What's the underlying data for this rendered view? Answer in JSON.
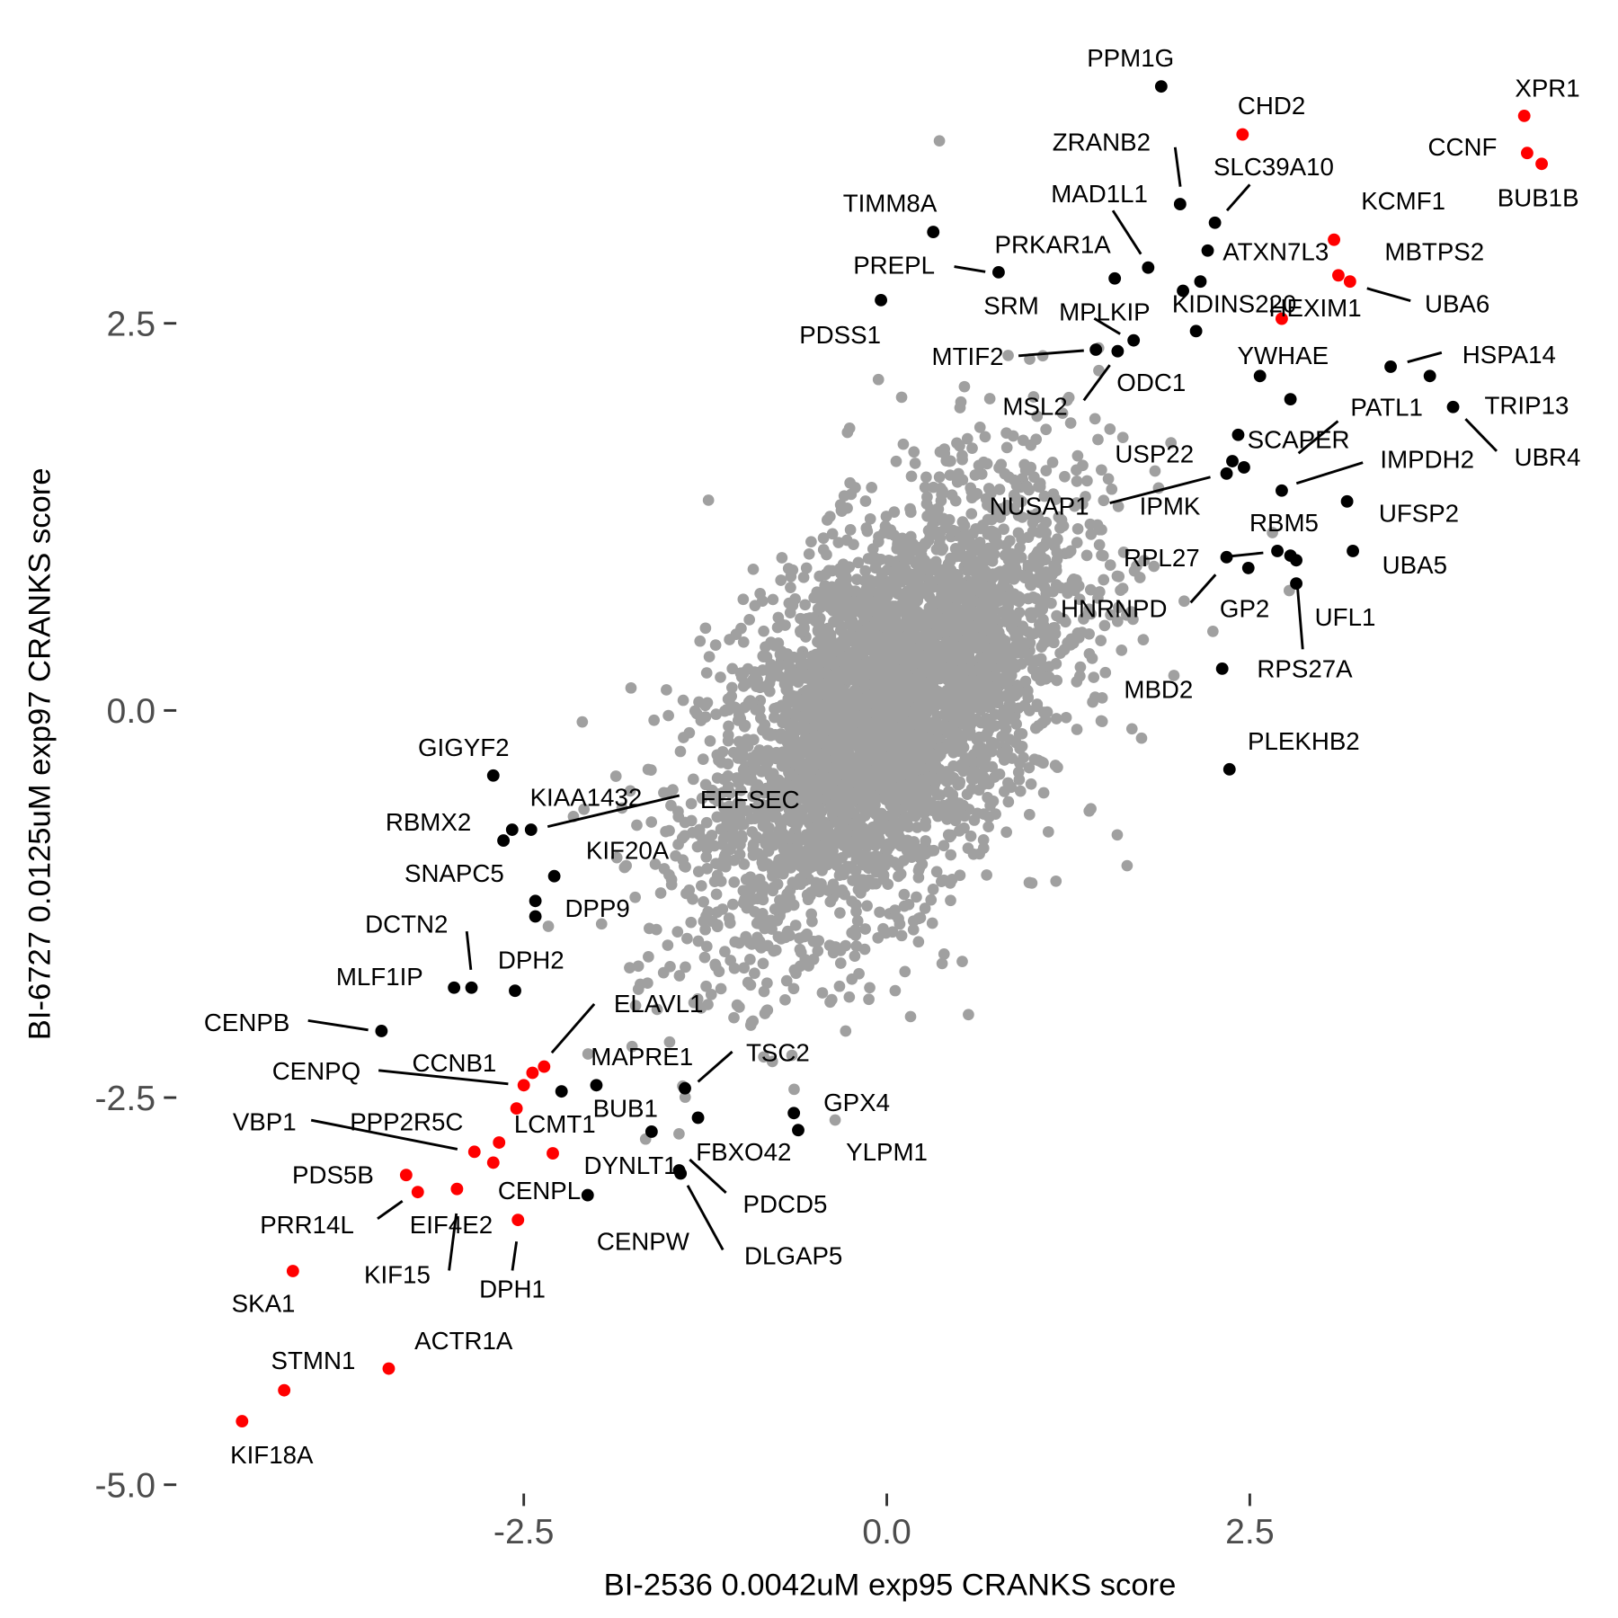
{
  "chart_data": {
    "type": "scatter",
    "title": "",
    "xlabel": "BI-2536 0.0042uM exp95 CRANKS score",
    "ylabel": "BI-6727 0.0125uM exp97 CRANKS score",
    "xlim": [
      -6.1,
      4.8
    ],
    "ylim": [
      -5.0,
      4.6
    ],
    "xticks": [
      -2.5,
      0.0,
      2.5
    ],
    "xtick_labels": [
      "-2.5",
      "0.0",
      "2.5"
    ],
    "yticks": [
      -5.0,
      -2.5,
      0.0,
      2.5
    ],
    "ytick_labels": [
      "-5.0",
      "-2.5",
      "0.0",
      "2.5"
    ],
    "grid": false,
    "legend": "none",
    "colors": {
      "background": "#a0a0a0",
      "hit": "#000000",
      "highlight": "#ff0000"
    },
    "background_points": {
      "description_count": 4000,
      "color": "#a0a0a0"
    },
    "labeled_points": [
      {
        "label": "PPM1G",
        "x": 1.89,
        "y": 4.03,
        "color": "#000000"
      },
      {
        "label": "CHD2",
        "x": 2.45,
        "y": 3.72,
        "color": "#ff0000"
      },
      {
        "label": "XPR1",
        "x": 4.39,
        "y": 3.84,
        "color": "#ff0000"
      },
      {
        "label": "CCNF",
        "x": 4.41,
        "y": 3.6,
        "color": "#ff0000"
      },
      {
        "label": "BUB1B",
        "x": 4.51,
        "y": 3.53,
        "color": "#ff0000"
      },
      {
        "label": "ZRANB2",
        "x": 2.02,
        "y": 3.27,
        "color": "#000000"
      },
      {
        "label": "SLC39A10",
        "x": 2.26,
        "y": 3.15,
        "color": "#000000"
      },
      {
        "label": "TIMM8A",
        "x": 0.32,
        "y": 3.09,
        "color": "#000000"
      },
      {
        "label": "MAD1L1",
        "x": 1.8,
        "y": 2.86,
        "color": "#000000"
      },
      {
        "label": "KCMF1",
        "x": 3.08,
        "y": 3.04,
        "color": "#ff0000"
      },
      {
        "label": "PRKAR1A",
        "x": 1.57,
        "y": 2.79,
        "color": "#000000"
      },
      {
        "label": "ATXN7L3",
        "x": 2.21,
        "y": 2.97,
        "color": "#000000"
      },
      {
        "label": "MBTPS2",
        "x": 3.11,
        "y": 2.81,
        "color": "#ff0000"
      },
      {
        "label": "UBA6",
        "x": 3.19,
        "y": 2.77,
        "color": "#ff0000"
      },
      {
        "label": "PREPL",
        "x": 0.77,
        "y": 2.83,
        "color": "#000000"
      },
      {
        "label": "PDSS1",
        "x": -0.04,
        "y": 2.65,
        "color": "#000000"
      },
      {
        "label": "SRM",
        "x": 2.04,
        "y": 2.71,
        "color": "#000000"
      },
      {
        "label": "KIDINS220",
        "x": 2.16,
        "y": 2.77,
        "color": "#000000"
      },
      {
        "label": "HEXIM1",
        "x": 2.72,
        "y": 2.53,
        "color": "#ff0000"
      },
      {
        "label": "MPLKIP",
        "x": 1.7,
        "y": 2.39,
        "color": "#000000"
      },
      {
        "label": "MTIF2",
        "x": 1.44,
        "y": 2.33,
        "color": "#000000"
      },
      {
        "label": "ODC1",
        "x": 2.13,
        "y": 2.45,
        "color": "#000000"
      },
      {
        "label": "MSL2",
        "x": 1.59,
        "y": 2.32,
        "color": "#000000"
      },
      {
        "label": "YWHAE",
        "x": 2.57,
        "y": 2.16,
        "color": "#000000"
      },
      {
        "label": "HSPA14",
        "x": 3.47,
        "y": 2.22,
        "color": "#000000"
      },
      {
        "label": "TRIP13",
        "x": 3.74,
        "y": 2.16,
        "color": "#000000"
      },
      {
        "label": "UBR4",
        "x": 3.9,
        "y": 1.96,
        "color": "#000000"
      },
      {
        "label": "PATL1",
        "x": 2.78,
        "y": 2.01,
        "color": "#000000"
      },
      {
        "label": "SCAPER",
        "x": 2.42,
        "y": 1.78,
        "color": "#000000"
      },
      {
        "label": "IMPDH2",
        "x": 2.72,
        "y": 1.42,
        "color": "#000000"
      },
      {
        "label": "USP22",
        "x": 2.38,
        "y": 1.61,
        "color": "#000000"
      },
      {
        "label": "NUSAP1",
        "x": 2.34,
        "y": 1.53,
        "color": "#000000"
      },
      {
        "label": "IPMK",
        "x": 2.46,
        "y": 1.57,
        "color": "#000000"
      },
      {
        "label": "UFSP2",
        "x": 3.17,
        "y": 1.35,
        "color": "#000000"
      },
      {
        "label": "RBM5",
        "x": 2.69,
        "y": 1.03,
        "color": "#000000"
      },
      {
        "label": "UBA5",
        "x": 3.21,
        "y": 1.03,
        "color": "#000000"
      },
      {
        "label": "RPL27",
        "x": 2.78,
        "y": 1.0,
        "color": "#000000"
      },
      {
        "label": "GP2",
        "x": 2.49,
        "y": 0.92,
        "color": "#000000"
      },
      {
        "label": "HNRNPD",
        "x": 2.34,
        "y": 0.99,
        "color": "#000000"
      },
      {
        "label": "UFL1",
        "x": 2.82,
        "y": 0.97,
        "color": "#000000"
      },
      {
        "label": "RPS27A",
        "x": 2.82,
        "y": 0.82,
        "color": "#000000"
      },
      {
        "label": "MBD2",
        "x": 2.31,
        "y": 0.27,
        "color": "#000000"
      },
      {
        "label": "PLEKHB2",
        "x": 2.36,
        "y": -0.38,
        "color": "#000000"
      },
      {
        "label": "GIGYF2",
        "x": -2.71,
        "y": -0.42,
        "color": "#000000"
      },
      {
        "label": "RBMX2",
        "x": -2.64,
        "y": -0.84,
        "color": "#000000"
      },
      {
        "label": "KIAA1432",
        "x": -2.58,
        "y": -0.77,
        "color": "#000000"
      },
      {
        "label": "EEFSEC",
        "x": -2.45,
        "y": -0.77,
        "color": "#000000"
      },
      {
        "label": "KIF20A",
        "x": -2.29,
        "y": -1.07,
        "color": "#000000"
      },
      {
        "label": "SNAPC5",
        "x": -2.42,
        "y": -1.23,
        "color": "#000000"
      },
      {
        "label": "DPP9",
        "x": -2.42,
        "y": -1.33,
        "color": "#000000"
      },
      {
        "label": "DCTN2",
        "x": -2.86,
        "y": -1.79,
        "color": "#000000"
      },
      {
        "label": "DPH2",
        "x": -2.56,
        "y": -1.81,
        "color": "#000000"
      },
      {
        "label": "MLF1IP",
        "x": -2.98,
        "y": -1.79,
        "color": "#000000"
      },
      {
        "label": "CENPB",
        "x": -3.48,
        "y": -2.07,
        "color": "#000000"
      },
      {
        "label": "ELAVL1",
        "x": -2.36,
        "y": -2.3,
        "color": "#ff0000"
      },
      {
        "label": "CENPQ",
        "x": -2.5,
        "y": -2.42,
        "color": "#ff0000"
      },
      {
        "label": "CCNB1",
        "x": -2.44,
        "y": -2.34,
        "color": "#ff0000"
      },
      {
        "label": "MAPRE1",
        "x": -2.24,
        "y": -2.46,
        "color": "#000000"
      },
      {
        "label": "TSC2",
        "x": -1.39,
        "y": -2.44,
        "color": "#000000"
      },
      {
        "label": "BUB1",
        "x": -2.0,
        "y": -2.42,
        "color": "#000000"
      },
      {
        "label": "GPX4",
        "x": -0.64,
        "y": -2.6,
        "color": "#000000"
      },
      {
        "label": "YLPM1",
        "x": -0.61,
        "y": -2.71,
        "color": "#000000"
      },
      {
        "label": "VBP1",
        "x": -2.84,
        "y": -2.85,
        "color": "#ff0000"
      },
      {
        "label": "PPP2R5C",
        "x": -2.67,
        "y": -2.79,
        "color": "#ff0000"
      },
      {
        "label": "LCMT1",
        "x": -2.55,
        "y": -2.57,
        "color": "#ff0000"
      },
      {
        "label": "DYNLT1",
        "x": -1.62,
        "y": -2.72,
        "color": "#000000"
      },
      {
        "label": "FBXO42",
        "x": -1.3,
        "y": -2.63,
        "color": "#000000"
      },
      {
        "label": "PDCD5",
        "x": -1.43,
        "y": -2.97,
        "color": "#000000"
      },
      {
        "label": "DLGAP5",
        "x": -1.42,
        "y": -2.99,
        "color": "#000000"
      },
      {
        "label": "CENPL",
        "x": -2.3,
        "y": -2.86,
        "color": "#ff0000"
      },
      {
        "label": "CENPW",
        "x": -2.06,
        "y": -3.13,
        "color": "#000000"
      },
      {
        "label": "PDS5B",
        "x": -3.31,
        "y": -3.0,
        "color": "#ff0000"
      },
      {
        "label": "PRR14L",
        "x": -3.23,
        "y": -3.11,
        "color": "#ff0000"
      },
      {
        "label": "EIF4E2",
        "x": -2.71,
        "y": -2.92,
        "color": "#ff0000"
      },
      {
        "label": "KIF15",
        "x": -2.96,
        "y": -3.09,
        "color": "#ff0000"
      },
      {
        "label": "DPH1",
        "x": -2.54,
        "y": -3.29,
        "color": "#ff0000"
      },
      {
        "label": "SKA1",
        "x": -4.09,
        "y": -3.62,
        "color": "#ff0000"
      },
      {
        "label": "ACTR1A",
        "x": -3.43,
        "y": -4.25,
        "color": "#ff0000"
      },
      {
        "label": "STMN1",
        "x": -4.15,
        "y": -4.39,
        "color": "#ff0000"
      },
      {
        "label": "KIF18A",
        "x": -4.44,
        "y": -4.59,
        "color": "#ff0000"
      }
    ]
  }
}
